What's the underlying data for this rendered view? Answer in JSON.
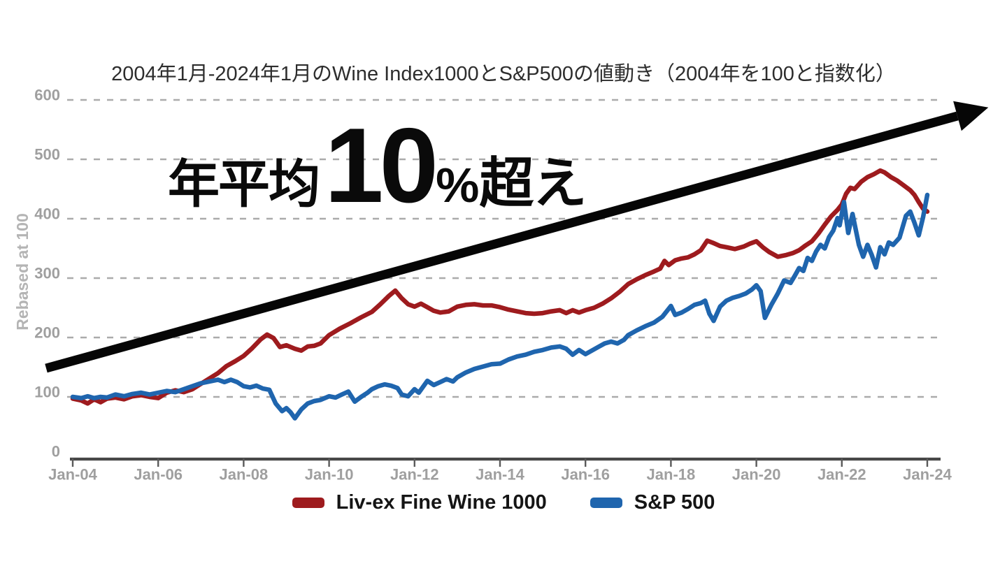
{
  "title": {
    "text": "2004年1月-2024年1月のWine Index1000とS&P500の値動き（2004年を100と指数化）"
  },
  "annotation": {
    "prefix": "年平均",
    "big_number": "10",
    "percent": "%",
    "suffix": "超え"
  },
  "y_axis": {
    "label": "Rebased at 100"
  },
  "legend": {
    "items": [
      {
        "label": "Liv-ex Fine Wine 1000",
        "color": "#9e1b1e"
      },
      {
        "label": "S&P 500",
        "color": "#1f65ae"
      }
    ]
  },
  "colors": {
    "background": "#ffffff",
    "grid": "#ababab",
    "axis": "#474747",
    "tick_label": "#9f9f9f",
    "axis_title": "#b4b4b4",
    "title_text": "#2d2d2d",
    "legend_text": "#151515",
    "annotation_text": "#0a0a0a",
    "arrow": "#060606",
    "wine": "#9e1b1e",
    "sp500": "#1f65ae"
  },
  "chart_data": {
    "type": "line",
    "title": "2004年1月-2024年1月のWine Index1000とS&P500の値動き（2004年を100と指数化）",
    "xlabel": "",
    "ylabel": "Rebased at 100",
    "xlim": [
      2004,
      2024.3
    ],
    "ylim": [
      0,
      600
    ],
    "grid": "horizontal-dashed",
    "legend_position": "bottom",
    "annotation_text": "年平均10%超え",
    "y_ticks": [
      600,
      500,
      400,
      300,
      200,
      100,
      0
    ],
    "x_ticks": [
      {
        "year": 2004,
        "label": "Jan-04"
      },
      {
        "year": 2006,
        "label": "Jan-06"
      },
      {
        "year": 2008,
        "label": "Jan-08"
      },
      {
        "year": 2010,
        "label": "Jan-10"
      },
      {
        "year": 2012,
        "label": "Jan-12"
      },
      {
        "year": 2014,
        "label": "Jan-14"
      },
      {
        "year": 2016,
        "label": "Jan-16"
      },
      {
        "year": 2018,
        "label": "Jan-18"
      },
      {
        "year": 2020,
        "label": "Jan-20"
      },
      {
        "year": 2022,
        "label": "Jan-22"
      },
      {
        "year": 2024,
        "label": "Jan-24"
      }
    ],
    "series": [
      {
        "name": "Liv-ex Fine Wine 1000",
        "color": "#9e1b1e",
        "points": [
          [
            2004.0,
            97
          ],
          [
            2004.2,
            94
          ],
          [
            2004.35,
            89
          ],
          [
            2004.5,
            96
          ],
          [
            2004.65,
            91
          ],
          [
            2004.8,
            97
          ],
          [
            2005.0,
            99
          ],
          [
            2005.2,
            96
          ],
          [
            2005.4,
            101
          ],
          [
            2005.6,
            103
          ],
          [
            2005.8,
            100
          ],
          [
            2006.0,
            98
          ],
          [
            2006.2,
            107
          ],
          [
            2006.4,
            111
          ],
          [
            2006.6,
            108
          ],
          [
            2006.8,
            113
          ],
          [
            2007.0,
            122
          ],
          [
            2007.2,
            131
          ],
          [
            2007.4,
            140
          ],
          [
            2007.6,
            152
          ],
          [
            2007.8,
            160
          ],
          [
            2008.0,
            169
          ],
          [
            2008.2,
            182
          ],
          [
            2008.4,
            197
          ],
          [
            2008.55,
            205
          ],
          [
            2008.7,
            199
          ],
          [
            2008.85,
            184
          ],
          [
            2009.0,
            187
          ],
          [
            2009.2,
            181
          ],
          [
            2009.35,
            178
          ],
          [
            2009.5,
            185
          ],
          [
            2009.65,
            186
          ],
          [
            2009.8,
            190
          ],
          [
            2010.0,
            204
          ],
          [
            2010.25,
            215
          ],
          [
            2010.5,
            224
          ],
          [
            2010.75,
            234
          ],
          [
            2011.0,
            243
          ],
          [
            2011.2,
            256
          ],
          [
            2011.4,
            270
          ],
          [
            2011.55,
            279
          ],
          [
            2011.7,
            266
          ],
          [
            2011.85,
            256
          ],
          [
            2012.0,
            252
          ],
          [
            2012.15,
            257
          ],
          [
            2012.3,
            251
          ],
          [
            2012.45,
            245
          ],
          [
            2012.6,
            242
          ],
          [
            2012.8,
            244
          ],
          [
            2013.0,
            252
          ],
          [
            2013.2,
            255
          ],
          [
            2013.4,
            256
          ],
          [
            2013.6,
            254
          ],
          [
            2013.8,
            254
          ],
          [
            2014.0,
            251
          ],
          [
            2014.2,
            247
          ],
          [
            2014.4,
            244
          ],
          [
            2014.6,
            241
          ],
          [
            2014.8,
            240
          ],
          [
            2015.0,
            241
          ],
          [
            2015.2,
            244
          ],
          [
            2015.4,
            246
          ],
          [
            2015.55,
            241
          ],
          [
            2015.7,
            246
          ],
          [
            2015.85,
            242
          ],
          [
            2016.0,
            246
          ],
          [
            2016.2,
            250
          ],
          [
            2016.4,
            257
          ],
          [
            2016.6,
            266
          ],
          [
            2016.8,
            277
          ],
          [
            2017.0,
            290
          ],
          [
            2017.2,
            298
          ],
          [
            2017.4,
            305
          ],
          [
            2017.6,
            311
          ],
          [
            2017.75,
            316
          ],
          [
            2017.85,
            329
          ],
          [
            2017.95,
            322
          ],
          [
            2018.1,
            330
          ],
          [
            2018.25,
            333
          ],
          [
            2018.4,
            335
          ],
          [
            2018.55,
            340
          ],
          [
            2018.7,
            347
          ],
          [
            2018.85,
            363
          ],
          [
            2019.0,
            359
          ],
          [
            2019.15,
            354
          ],
          [
            2019.3,
            352
          ],
          [
            2019.5,
            349
          ],
          [
            2019.7,
            353
          ],
          [
            2019.85,
            358
          ],
          [
            2020.0,
            362
          ],
          [
            2020.15,
            352
          ],
          [
            2020.3,
            344
          ],
          [
            2020.5,
            336
          ],
          [
            2020.7,
            339
          ],
          [
            2020.85,
            342
          ],
          [
            2021.0,
            347
          ],
          [
            2021.15,
            355
          ],
          [
            2021.3,
            362
          ],
          [
            2021.45,
            375
          ],
          [
            2021.6,
            390
          ],
          [
            2021.75,
            404
          ],
          [
            2021.9,
            415
          ],
          [
            2022.0,
            424
          ],
          [
            2022.1,
            442
          ],
          [
            2022.2,
            452
          ],
          [
            2022.3,
            450
          ],
          [
            2022.45,
            462
          ],
          [
            2022.6,
            470
          ],
          [
            2022.75,
            475
          ],
          [
            2022.9,
            481
          ],
          [
            2023.0,
            478
          ],
          [
            2023.15,
            470
          ],
          [
            2023.3,
            464
          ],
          [
            2023.45,
            456
          ],
          [
            2023.6,
            448
          ],
          [
            2023.7,
            440
          ],
          [
            2023.8,
            428
          ],
          [
            2023.9,
            417
          ],
          [
            2024.0,
            412
          ]
        ]
      },
      {
        "name": "S&P 500",
        "color": "#1f65ae",
        "points": [
          [
            2004.0,
            100
          ],
          [
            2004.2,
            98
          ],
          [
            2004.35,
            101
          ],
          [
            2004.5,
            98
          ],
          [
            2004.65,
            100
          ],
          [
            2004.8,
            99
          ],
          [
            2005.0,
            104
          ],
          [
            2005.2,
            101
          ],
          [
            2005.4,
            105
          ],
          [
            2005.6,
            107
          ],
          [
            2005.8,
            104
          ],
          [
            2006.0,
            107
          ],
          [
            2006.2,
            110
          ],
          [
            2006.4,
            108
          ],
          [
            2006.6,
            113
          ],
          [
            2006.8,
            118
          ],
          [
            2007.0,
            123
          ],
          [
            2007.2,
            126
          ],
          [
            2007.4,
            129
          ],
          [
            2007.55,
            125
          ],
          [
            2007.7,
            129
          ],
          [
            2007.85,
            125
          ],
          [
            2008.0,
            118
          ],
          [
            2008.15,
            116
          ],
          [
            2008.3,
            119
          ],
          [
            2008.45,
            114
          ],
          [
            2008.6,
            112
          ],
          [
            2008.75,
            89
          ],
          [
            2008.9,
            76
          ],
          [
            2009.0,
            81
          ],
          [
            2009.1,
            74
          ],
          [
            2009.2,
            64
          ],
          [
            2009.35,
            79
          ],
          [
            2009.5,
            89
          ],
          [
            2009.65,
            93
          ],
          [
            2009.8,
            95
          ],
          [
            2010.0,
            101
          ],
          [
            2010.15,
            99
          ],
          [
            2010.3,
            104
          ],
          [
            2010.45,
            109
          ],
          [
            2010.6,
            92
          ],
          [
            2010.75,
            100
          ],
          [
            2010.9,
            107
          ],
          [
            2011.0,
            113
          ],
          [
            2011.15,
            118
          ],
          [
            2011.3,
            121
          ],
          [
            2011.45,
            119
          ],
          [
            2011.6,
            115
          ],
          [
            2011.7,
            104
          ],
          [
            2011.85,
            101
          ],
          [
            2012.0,
            113
          ],
          [
            2012.1,
            107
          ],
          [
            2012.3,
            127
          ],
          [
            2012.45,
            120
          ],
          [
            2012.6,
            125
          ],
          [
            2012.75,
            130
          ],
          [
            2012.9,
            126
          ],
          [
            2013.0,
            133
          ],
          [
            2013.2,
            141
          ],
          [
            2013.4,
            147
          ],
          [
            2013.6,
            151
          ],
          [
            2013.8,
            155
          ],
          [
            2014.0,
            156
          ],
          [
            2014.2,
            163
          ],
          [
            2014.4,
            168
          ],
          [
            2014.6,
            171
          ],
          [
            2014.8,
            176
          ],
          [
            2015.0,
            179
          ],
          [
            2015.2,
            183
          ],
          [
            2015.4,
            185
          ],
          [
            2015.55,
            181
          ],
          [
            2015.7,
            171
          ],
          [
            2015.85,
            179
          ],
          [
            2016.0,
            172
          ],
          [
            2016.15,
            178
          ],
          [
            2016.3,
            184
          ],
          [
            2016.45,
            190
          ],
          [
            2016.6,
            193
          ],
          [
            2016.75,
            190
          ],
          [
            2016.9,
            196
          ],
          [
            2017.0,
            204
          ],
          [
            2017.2,
            212
          ],
          [
            2017.4,
            219
          ],
          [
            2017.6,
            225
          ],
          [
            2017.8,
            235
          ],
          [
            2018.0,
            253
          ],
          [
            2018.1,
            238
          ],
          [
            2018.25,
            242
          ],
          [
            2018.4,
            248
          ],
          [
            2018.55,
            255
          ],
          [
            2018.7,
            258
          ],
          [
            2018.8,
            262
          ],
          [
            2018.9,
            240
          ],
          [
            2019.0,
            228
          ],
          [
            2019.15,
            252
          ],
          [
            2019.3,
            262
          ],
          [
            2019.45,
            267
          ],
          [
            2019.6,
            270
          ],
          [
            2019.75,
            274
          ],
          [
            2019.9,
            281
          ],
          [
            2020.0,
            288
          ],
          [
            2020.1,
            278
          ],
          [
            2020.2,
            233
          ],
          [
            2020.35,
            255
          ],
          [
            2020.5,
            274
          ],
          [
            2020.65,
            296
          ],
          [
            2020.8,
            292
          ],
          [
            2020.9,
            304
          ],
          [
            2021.0,
            317
          ],
          [
            2021.1,
            312
          ],
          [
            2021.2,
            334
          ],
          [
            2021.3,
            329
          ],
          [
            2021.4,
            345
          ],
          [
            2021.5,
            356
          ],
          [
            2021.6,
            350
          ],
          [
            2021.7,
            369
          ],
          [
            2021.8,
            380
          ],
          [
            2021.9,
            401
          ],
          [
            2021.95,
            389
          ],
          [
            2022.05,
            428
          ],
          [
            2022.15,
            376
          ],
          [
            2022.25,
            408
          ],
          [
            2022.4,
            356
          ],
          [
            2022.5,
            336
          ],
          [
            2022.6,
            356
          ],
          [
            2022.7,
            339
          ],
          [
            2022.8,
            318
          ],
          [
            2022.9,
            352
          ],
          [
            2023.0,
            340
          ],
          [
            2023.1,
            360
          ],
          [
            2023.2,
            356
          ],
          [
            2023.35,
            368
          ],
          [
            2023.5,
            405
          ],
          [
            2023.6,
            412
          ],
          [
            2023.7,
            393
          ],
          [
            2023.8,
            372
          ],
          [
            2023.9,
            402
          ],
          [
            2024.0,
            440
          ]
        ]
      }
    ]
  }
}
